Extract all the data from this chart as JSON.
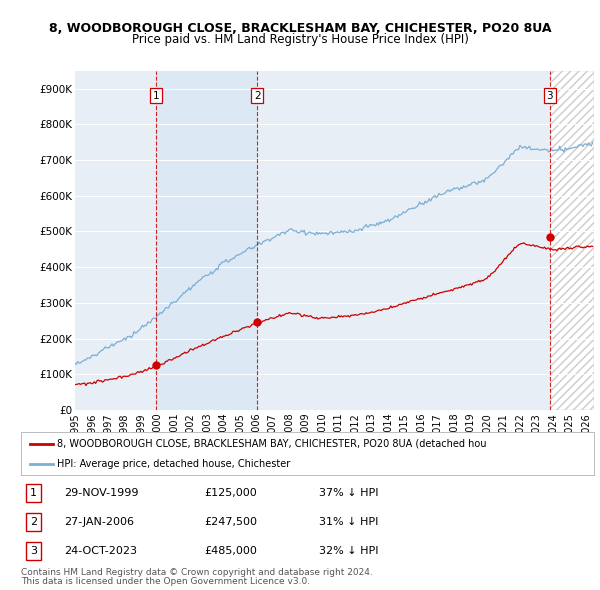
{
  "title1": "8, WOODBOROUGH CLOSE, BRACKLESHAM BAY, CHICHESTER, PO20 8UA",
  "title2": "Price paid vs. HM Land Registry's House Price Index (HPI)",
  "ylim": [
    0,
    950000
  ],
  "yticks": [
    0,
    100000,
    200000,
    300000,
    400000,
    500000,
    600000,
    700000,
    800000,
    900000
  ],
  "ytick_labels": [
    "£0",
    "£100K",
    "£200K",
    "£300K",
    "£400K",
    "£500K",
    "£600K",
    "£700K",
    "£800K",
    "£900K"
  ],
  "hpi_color": "#7bafd4",
  "price_color": "#cc0000",
  "dashed_color": "#cc0000",
  "transaction_years": [
    1999.91,
    2006.07,
    2023.81
  ],
  "transaction_prices": [
    125000,
    247500,
    485000
  ],
  "transaction_labels": [
    "1",
    "2",
    "3"
  ],
  "transaction_hpi_pct": [
    "37% ↓ HPI",
    "31% ↓ HPI",
    "32% ↓ HPI"
  ],
  "transaction_display_dates": [
    "29-NOV-1999",
    "27-JAN-2006",
    "24-OCT-2023"
  ],
  "legend_label_price": "8, WOODBOROUGH CLOSE, BRACKLESHAM BAY, CHICHESTER, PO20 8UA (detached hou",
  "legend_label_hpi": "HPI: Average price, detached house, Chichester",
  "footer1": "Contains HM Land Registry data © Crown copyright and database right 2024.",
  "footer2": "This data is licensed under the Open Government Licence v3.0.",
  "background_color": "#ffffff",
  "plot_bg_color": "#e8eef5",
  "shade_color": "#dde8f5",
  "xmin": 1995,
  "xmax": 2026.5
}
